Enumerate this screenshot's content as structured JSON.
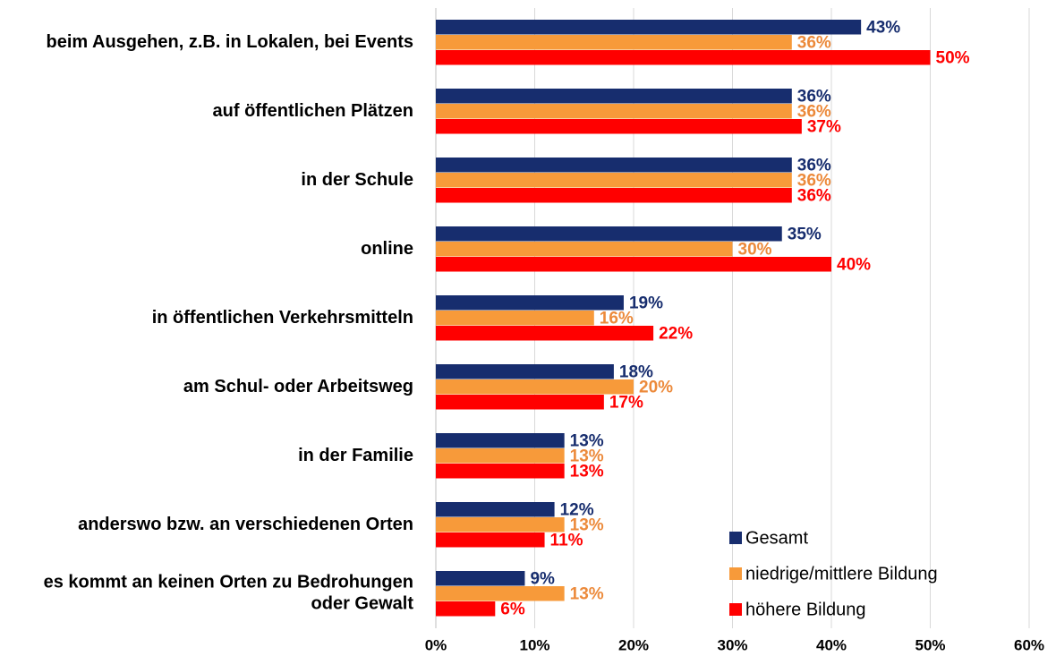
{
  "chart_data": {
    "type": "barh",
    "categories": [
      "beim Ausgehen, z.B. in Lokalen, bei Events",
      "auf öffentlichen Plätzen",
      "in der Schule",
      "online",
      "in öffentlichen Verkehrsmitteln",
      "am Schul- oder Arbeitsweg",
      "in der Familie",
      "anderswo bzw. an verschiedenen Orten",
      "es kommt an keinen Orten zu Bedrohungen oder Gewalt"
    ],
    "series": [
      {
        "name": "Gesamt",
        "color": "#172d6e",
        "label_color": "#172d6e",
        "values": [
          43,
          36,
          36,
          35,
          19,
          18,
          13,
          12,
          9
        ],
        "value_labels": [
          "43%",
          "36%",
          "36%",
          "35%",
          "19%",
          "18%",
          "13%",
          "12%",
          "9%"
        ]
      },
      {
        "name": "niedrige/mittlere Bildung",
        "color": "#f79a3a",
        "label_color": "#ec8a3b",
        "values": [
          36,
          36,
          36,
          30,
          16,
          20,
          13,
          13,
          13
        ],
        "value_labels": [
          "36%",
          "36%",
          "36%",
          "30%",
          "16%",
          "20%",
          "13%",
          "13%",
          "13%"
        ]
      },
      {
        "name": "höhere Bildung",
        "color": "#ff0000",
        "label_color": "#ff0000",
        "values": [
          50,
          37,
          36,
          40,
          22,
          17,
          13,
          11,
          6
        ],
        "value_labels": [
          "50%",
          "37%",
          "36%",
          "40%",
          "22%",
          "17%",
          "13%",
          "11%",
          "6%"
        ]
      }
    ],
    "xlim": [
      0,
      60
    ],
    "xticks": [
      {
        "value": 0,
        "label": "0%"
      },
      {
        "value": 10,
        "label": "10%"
      },
      {
        "value": 20,
        "label": "20%"
      },
      {
        "value": 30,
        "label": "30%"
      },
      {
        "value": 40,
        "label": "40%"
      },
      {
        "value": 50,
        "label": "50%"
      },
      {
        "value": 60,
        "label": "60%"
      }
    ],
    "grid": true,
    "legend": "lower right"
  }
}
